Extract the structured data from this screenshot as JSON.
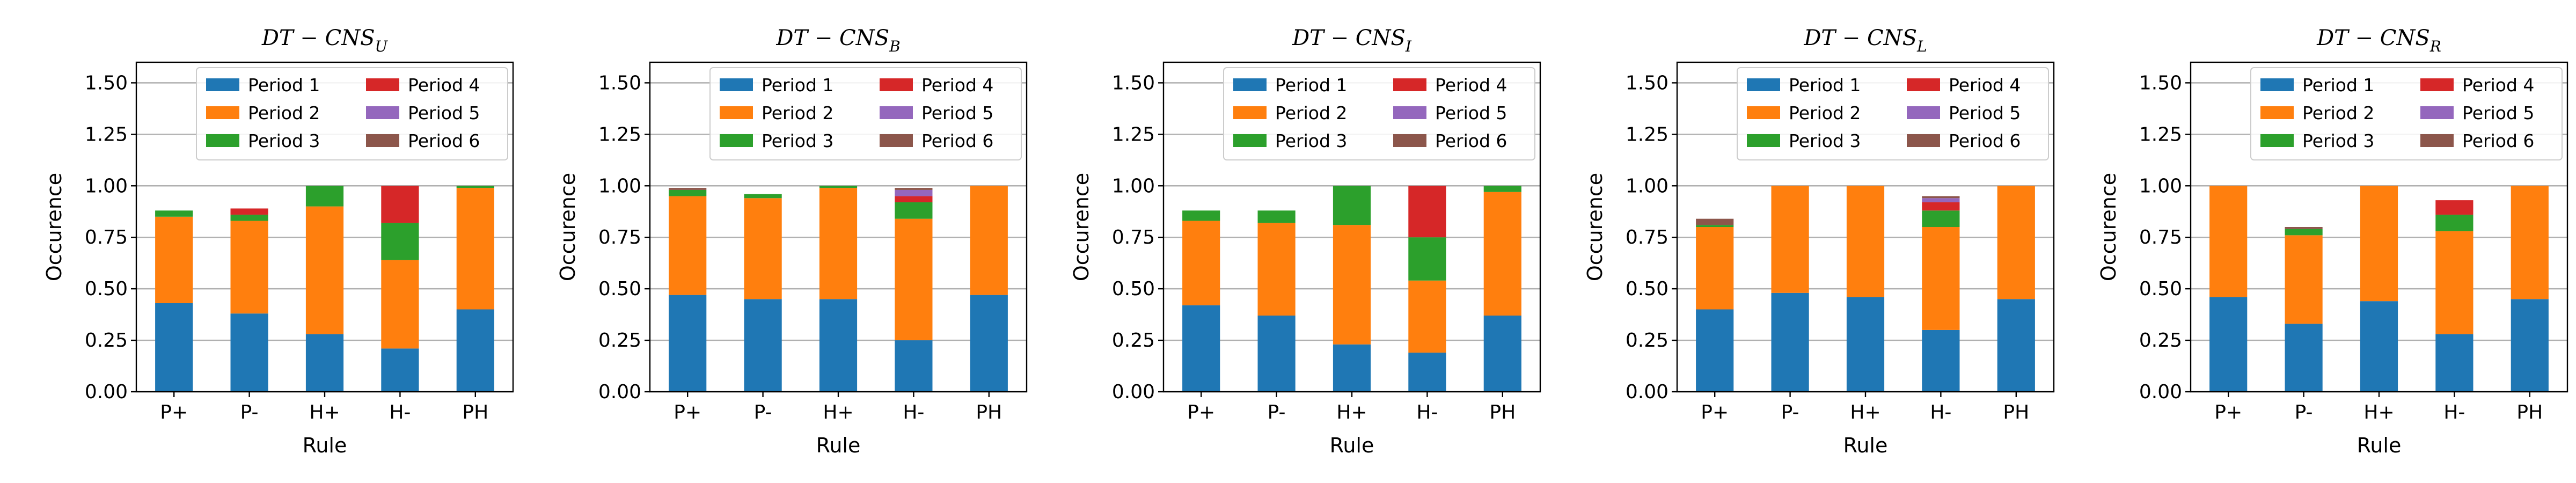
{
  "chart_data": [
    {
      "type": "bar",
      "stacked": true,
      "title_base": "DT − CNS",
      "title_sub": "U",
      "categories": [
        "P+",
        "P-",
        "H+",
        "H-",
        "PH"
      ],
      "xlabel": "Rule",
      "ylabel": "Occurence",
      "ylim": [
        0,
        1.6
      ],
      "yticks": [
        "0.00",
        "0.25",
        "0.50",
        "0.75",
        "1.00",
        "1.25",
        "1.50"
      ],
      "grid": "horizontal",
      "legend_position": "upper-right",
      "series": [
        {
          "name": "Period 1",
          "values": [
            0.43,
            0.38,
            0.28,
            0.21,
            0.4
          ]
        },
        {
          "name": "Period 2",
          "values": [
            0.42,
            0.45,
            0.62,
            0.43,
            0.59
          ]
        },
        {
          "name": "Period 3",
          "values": [
            0.03,
            0.03,
            0.1,
            0.18,
            0.01
          ]
        },
        {
          "name": "Period 4",
          "values": [
            0.0,
            0.03,
            0.0,
            0.18,
            0.0
          ]
        },
        {
          "name": "Period 5",
          "values": [
            0.0,
            0.0,
            0.0,
            0.0,
            0.0
          ]
        },
        {
          "name": "Period 6",
          "values": [
            0.0,
            0.0,
            0.0,
            0.0,
            0.0
          ]
        }
      ]
    },
    {
      "type": "bar",
      "stacked": true,
      "title_base": "DT − CNS",
      "title_sub": "B",
      "categories": [
        "P+",
        "P-",
        "H+",
        "H-",
        "PH"
      ],
      "xlabel": "Rule",
      "ylabel": "Occurence",
      "ylim": [
        0,
        1.6
      ],
      "yticks": [
        "0.00",
        "0.25",
        "0.50",
        "0.75",
        "1.00",
        "1.25",
        "1.50"
      ],
      "grid": "horizontal",
      "legend_position": "upper-right",
      "series": [
        {
          "name": "Period 1",
          "values": [
            0.47,
            0.45,
            0.45,
            0.25,
            0.47
          ]
        },
        {
          "name": "Period 2",
          "values": [
            0.48,
            0.49,
            0.54,
            0.59,
            0.53
          ]
        },
        {
          "name": "Period 3",
          "values": [
            0.03,
            0.02,
            0.01,
            0.08,
            0.0
          ]
        },
        {
          "name": "Period 4",
          "values": [
            0.0,
            0.0,
            0.0,
            0.03,
            0.0
          ]
        },
        {
          "name": "Period 5",
          "values": [
            0.0,
            0.0,
            0.0,
            0.03,
            0.0
          ]
        },
        {
          "name": "Period 6",
          "values": [
            0.01,
            0.0,
            0.0,
            0.01,
            0.0
          ]
        }
      ]
    },
    {
      "type": "bar",
      "stacked": true,
      "title_base": "DT − CNS",
      "title_sub": "I",
      "categories": [
        "P+",
        "P-",
        "H+",
        "H-",
        "PH"
      ],
      "xlabel": "Rule",
      "ylabel": "Occurence",
      "ylim": [
        0,
        1.6
      ],
      "yticks": [
        "0.00",
        "0.25",
        "0.50",
        "0.75",
        "1.00",
        "1.25",
        "1.50"
      ],
      "grid": "horizontal",
      "legend_position": "upper-right",
      "series": [
        {
          "name": "Period 1",
          "values": [
            0.42,
            0.37,
            0.23,
            0.19,
            0.37
          ]
        },
        {
          "name": "Period 2",
          "values": [
            0.41,
            0.45,
            0.58,
            0.35,
            0.6
          ]
        },
        {
          "name": "Period 3",
          "values": [
            0.05,
            0.06,
            0.19,
            0.21,
            0.03
          ]
        },
        {
          "name": "Period 4",
          "values": [
            0.0,
            0.0,
            0.0,
            0.25,
            0.0
          ]
        },
        {
          "name": "Period 5",
          "values": [
            0.0,
            0.0,
            0.0,
            0.0,
            0.0
          ]
        },
        {
          "name": "Period 6",
          "values": [
            0.0,
            0.0,
            0.0,
            0.0,
            0.0
          ]
        }
      ]
    },
    {
      "type": "bar",
      "stacked": true,
      "title_base": "DT − CNS",
      "title_sub": "L",
      "categories": [
        "P+",
        "P-",
        "H+",
        "H-",
        "PH"
      ],
      "xlabel": "Rule",
      "ylabel": "Occurence",
      "ylim": [
        0,
        1.6
      ],
      "yticks": [
        "0.00",
        "0.25",
        "0.50",
        "0.75",
        "1.00",
        "1.25",
        "1.50"
      ],
      "grid": "horizontal",
      "legend_position": "upper-right",
      "series": [
        {
          "name": "Period 1",
          "values": [
            0.4,
            0.48,
            0.46,
            0.3,
            0.45
          ]
        },
        {
          "name": "Period 2",
          "values": [
            0.4,
            0.52,
            0.54,
            0.5,
            0.55
          ]
        },
        {
          "name": "Period 3",
          "values": [
            0.01,
            0.0,
            0.0,
            0.08,
            0.0
          ]
        },
        {
          "name": "Period 4",
          "values": [
            0.0,
            0.0,
            0.0,
            0.04,
            0.0
          ]
        },
        {
          "name": "Period 5",
          "values": [
            0.0,
            0.0,
            0.0,
            0.02,
            0.0
          ]
        },
        {
          "name": "Period 6",
          "values": [
            0.03,
            0.0,
            0.0,
            0.01,
            0.0
          ]
        }
      ]
    },
    {
      "type": "bar",
      "stacked": true,
      "title_base": "DT − CNS",
      "title_sub": "R",
      "categories": [
        "P+",
        "P-",
        "H+",
        "H-",
        "PH"
      ],
      "xlabel": "Rule",
      "ylabel": "Occurence",
      "ylim": [
        0,
        1.6
      ],
      "yticks": [
        "0.00",
        "0.25",
        "0.50",
        "0.75",
        "1.00",
        "1.25",
        "1.50"
      ],
      "grid": "horizontal",
      "legend_position": "upper-right",
      "series": [
        {
          "name": "Period 1",
          "values": [
            0.46,
            0.33,
            0.44,
            0.28,
            0.45
          ]
        },
        {
          "name": "Period 2",
          "values": [
            0.54,
            0.43,
            0.56,
            0.5,
            0.55
          ]
        },
        {
          "name": "Period 3",
          "values": [
            0.0,
            0.03,
            0.0,
            0.08,
            0.0
          ]
        },
        {
          "name": "Period 4",
          "values": [
            0.0,
            0.0,
            0.0,
            0.07,
            0.0
          ]
        },
        {
          "name": "Period 5",
          "values": [
            0.0,
            0.0,
            0.0,
            0.0,
            0.0
          ]
        },
        {
          "name": "Period 6",
          "values": [
            0.0,
            0.01,
            0.0,
            0.0,
            0.0
          ]
        }
      ]
    }
  ],
  "colors": [
    "#1f77b4",
    "#ff7f0e",
    "#2ca02c",
    "#d62728",
    "#9467bd",
    "#8c564b"
  ]
}
